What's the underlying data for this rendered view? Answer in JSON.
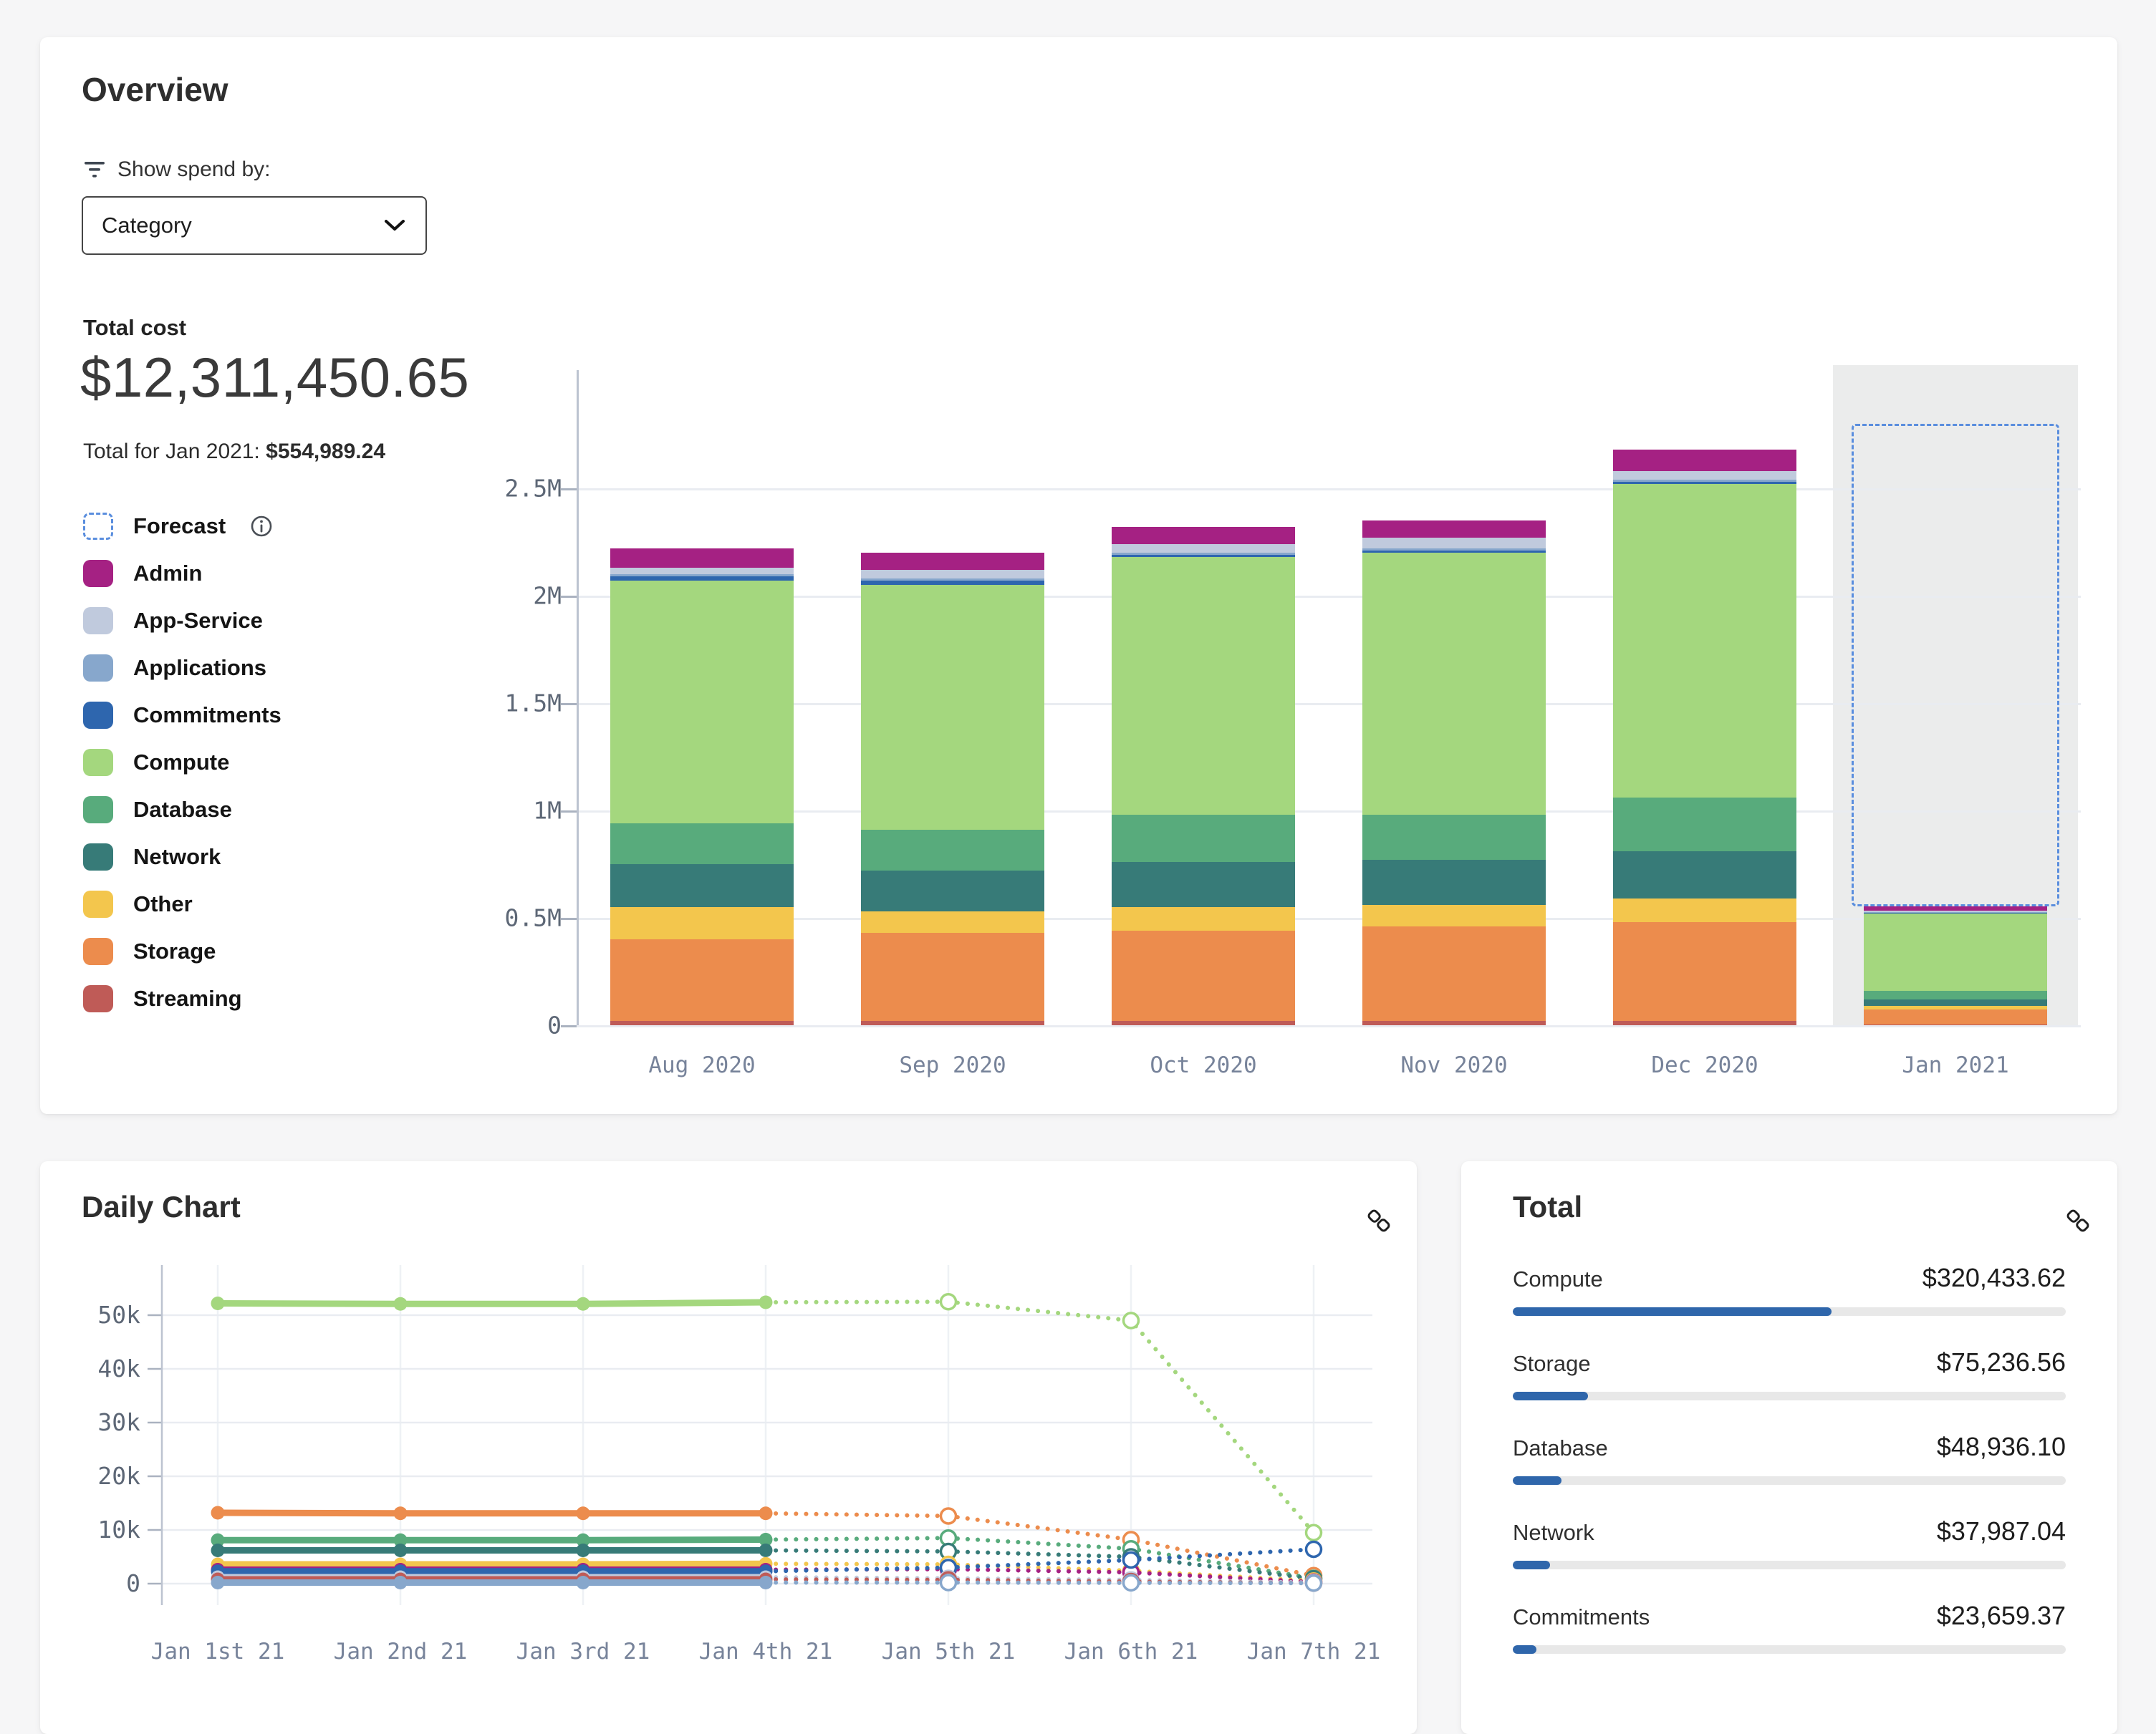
{
  "overview": {
    "title": "Overview",
    "filter_label": "Show spend by:",
    "dropdown_value": "Category",
    "total_cost_label": "Total cost",
    "total_cost_value": "$12,311,450.65",
    "subtotal_prefix": "Total for Jan 2021: ",
    "subtotal_value": "$554,989.24",
    "forecast_label": "Forecast"
  },
  "daily": {
    "title": "Daily Chart"
  },
  "totals": {
    "title": "Total",
    "rows": [
      {
        "label": "Compute",
        "value": "$320,433.62",
        "pct": 57.7
      },
      {
        "label": "Storage",
        "value": "$75,236.56",
        "pct": 13.6
      },
      {
        "label": "Database",
        "value": "$48,936.10",
        "pct": 8.8
      },
      {
        "label": "Network",
        "value": "$37,987.04",
        "pct": 6.8
      },
      {
        "label": "Commitments",
        "value": "$23,659.37",
        "pct": 4.3
      }
    ]
  },
  "colors": {
    "page_bg": "#f6f6f7",
    "card_bg": "#ffffff",
    "progress_fill": "#2f66ab",
    "progress_track": "#e8e8e8",
    "forecast_dash": "#5a8ede",
    "forecast_band": "#ebecec",
    "grid": "#e9ecf1",
    "axis": "#bcc3d0",
    "tick_text": "#5d6776",
    "month_text": "#77839a"
  },
  "chart_data": [
    {
      "type": "bar",
      "stacked": true,
      "title": "Monthly spend by category ($M)",
      "categories": [
        "Aug 2020",
        "Sep 2020",
        "Oct 2020",
        "Nov 2020",
        "Dec 2020",
        "Jan 2021"
      ],
      "unit": "$M",
      "ylim": [
        0,
        2.9
      ],
      "yticks": [
        {
          "v": 0,
          "label": "0"
        },
        {
          "v": 0.5,
          "label": "0.5M"
        },
        {
          "v": 1,
          "label": "1M"
        },
        {
          "v": 1.5,
          "label": "1.5M"
        },
        {
          "v": 2,
          "label": "2M"
        },
        {
          "v": 2.5,
          "label": "2.5M"
        }
      ],
      "series": [
        {
          "name": "Streaming",
          "color": "#bf5b57",
          "values": [
            0.02,
            0.02,
            0.02,
            0.02,
            0.02,
            0.005
          ]
        },
        {
          "name": "Storage",
          "color": "#ec8c4d",
          "values": [
            0.38,
            0.41,
            0.42,
            0.44,
            0.46,
            0.07
          ]
        },
        {
          "name": "Other",
          "color": "#f3c64d",
          "values": [
            0.15,
            0.1,
            0.11,
            0.1,
            0.11,
            0.015
          ]
        },
        {
          "name": "Network",
          "color": "#377b78",
          "values": [
            0.2,
            0.19,
            0.21,
            0.21,
            0.22,
            0.03
          ]
        },
        {
          "name": "Database",
          "color": "#58ab7c",
          "values": [
            0.19,
            0.19,
            0.22,
            0.21,
            0.25,
            0.04
          ]
        },
        {
          "name": "Compute",
          "color": "#a4d77e",
          "values": [
            1.13,
            1.14,
            1.2,
            1.22,
            1.46,
            0.36
          ]
        },
        {
          "name": "Commitments",
          "color": "#2e66ae",
          "dotted": true,
          "values": [
            0.02,
            0.02,
            0.01,
            0.01,
            0.01,
            0.005
          ]
        },
        {
          "name": "Applications",
          "color": "#87a7cc",
          "values": [
            0.01,
            0.01,
            0.01,
            0.01,
            0.01,
            0.003
          ]
        },
        {
          "name": "App-Service",
          "color": "#c0cadd",
          "values": [
            0.03,
            0.04,
            0.04,
            0.05,
            0.04,
            0.007
          ]
        },
        {
          "name": "Admin",
          "color": "#a52183",
          "values": [
            0.09,
            0.08,
            0.08,
            0.08,
            0.1,
            0.02
          ]
        }
      ],
      "forecast": {
        "category": "Jan 2021",
        "total": 2.8
      },
      "legend": [
        {
          "name": "Admin",
          "color": "#a52183"
        },
        {
          "name": "App-Service",
          "color": "#c0cadd"
        },
        {
          "name": "Applications",
          "color": "#87a7cc"
        },
        {
          "name": "Commitments",
          "color": "#2e66ae",
          "dotted": true
        },
        {
          "name": "Compute",
          "color": "#a4d77e"
        },
        {
          "name": "Database",
          "color": "#58ab7c"
        },
        {
          "name": "Network",
          "color": "#377b78"
        },
        {
          "name": "Other",
          "color": "#f3c64d"
        },
        {
          "name": "Storage",
          "color": "#ec8c4d"
        },
        {
          "name": "Streaming",
          "color": "#bf5b57"
        }
      ]
    },
    {
      "type": "line",
      "title": "Daily spend by category ($)",
      "x": [
        "Jan 1st 21",
        "Jan 2nd 21",
        "Jan 3rd 21",
        "Jan 4th 21",
        "Jan 5th 21",
        "Jan 6th 21",
        "Jan 7th 21"
      ],
      "actual_points": 4,
      "ylim": [
        0,
        58000
      ],
      "yticks": [
        {
          "v": 0,
          "label": "0"
        },
        {
          "v": 10000,
          "label": "10k"
        },
        {
          "v": 20000,
          "label": "20k"
        },
        {
          "v": 30000,
          "label": "30k"
        },
        {
          "v": 40000,
          "label": "40k"
        },
        {
          "v": 50000,
          "label": "50k"
        }
      ],
      "series": [
        {
          "name": "Compute",
          "color": "#a4d77e",
          "values": [
            52200,
            52100,
            52100,
            52400,
            52500,
            49000,
            9500
          ]
        },
        {
          "name": "Storage",
          "color": "#ec8c4d",
          "values": [
            13200,
            13100,
            13100,
            13100,
            12600,
            8200,
            1500
          ]
        },
        {
          "name": "Database",
          "color": "#58ab7c",
          "values": [
            8100,
            8100,
            8100,
            8200,
            8500,
            6500,
            1000
          ]
        },
        {
          "name": "Network",
          "color": "#377b78",
          "values": [
            6200,
            6200,
            6200,
            6200,
            6000,
            5000,
            900
          ]
        },
        {
          "name": "Other",
          "color": "#f3c64d",
          "values": [
            3600,
            3600,
            3600,
            3700,
            3600,
            2400,
            500
          ]
        },
        {
          "name": "Admin",
          "color": "#a52183",
          "values": [
            2600,
            2600,
            2600,
            2600,
            2700,
            2100,
            300
          ]
        },
        {
          "name": "Commitments",
          "color": "#2e66ae",
          "values": [
            2300,
            2300,
            2300,
            2300,
            3000,
            4400,
            6400
          ]
        },
        {
          "name": "App-Service",
          "color": "#c0cadd",
          "values": [
            1200,
            1200,
            1200,
            1200,
            1000,
            700,
            200
          ]
        },
        {
          "name": "Streaming",
          "color": "#bf5b57",
          "values": [
            800,
            800,
            800,
            800,
            700,
            400,
            100
          ]
        },
        {
          "name": "Applications",
          "color": "#87a7cc",
          "values": [
            200,
            200,
            200,
            200,
            200,
            150,
            100
          ]
        }
      ]
    }
  ]
}
